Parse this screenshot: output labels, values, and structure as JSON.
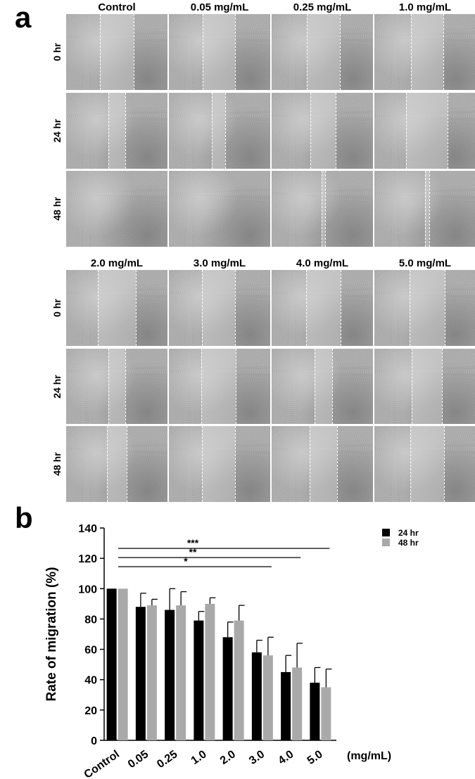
{
  "panel_a": {
    "letter": "a",
    "groups": [
      {
        "columns": [
          "Control",
          "0.05 mg/mL",
          "0.25 mg/mL",
          "1.0 mg/mL"
        ],
        "rows": [
          "0 hr",
          "24 hr",
          "48 hr"
        ],
        "gap_width": [
          [
            0.33,
            0.32,
            0.33,
            0.32
          ],
          [
            0.17,
            0.13,
            0.25,
            0.41
          ],
          [
            0,
            0,
            0.04,
            0.04
          ]
        ]
      },
      {
        "columns": [
          "2.0 mg/mL",
          "3.0 mg/mL",
          "4.0 mg/mL",
          "5.0 mg/mL"
        ],
        "rows": [
          "0 hr",
          "24 hr",
          "48 hr"
        ],
        "gap_width": [
          [
            0.37,
            0.33,
            0.34,
            0.35
          ],
          [
            0.17,
            0.34,
            0.17,
            0.3
          ],
          [
            0.2,
            0.33,
            0.27,
            0.33
          ]
        ]
      }
    ]
  },
  "chart_data": {
    "letter": "b",
    "type": "bar",
    "ylabel": "Rate of migration (%)",
    "xunit": "(mg/mL)",
    "categories": [
      "Control",
      "0.05",
      "0.25",
      "1.0",
      "2.0",
      "3.0",
      "4.0",
      "5.0"
    ],
    "ylim": [
      0,
      140
    ],
    "yticks": [
      0,
      20,
      40,
      60,
      80,
      100,
      120,
      140
    ],
    "series": [
      {
        "name": "24 hr",
        "color": "#000000",
        "values": [
          100,
          88,
          86,
          79,
          68,
          58,
          45,
          38
        ],
        "errors": [
          0,
          9,
          14,
          6,
          10,
          8,
          11,
          10
        ]
      },
      {
        "name": "48 hr",
        "color": "#a9a9a9",
        "values": [
          100,
          89,
          89,
          90,
          79,
          56,
          48,
          35
        ],
        "errors": [
          0,
          4,
          9,
          4,
          10,
          12,
          16,
          12
        ]
      }
    ],
    "significance": [
      {
        "label": "*",
        "from": "Control",
        "to": "3.0"
      },
      {
        "label": "**",
        "from": "Control",
        "to": "4.0"
      },
      {
        "label": "***",
        "from": "Control",
        "to": "5.0"
      }
    ],
    "legend_position": "top-right"
  }
}
